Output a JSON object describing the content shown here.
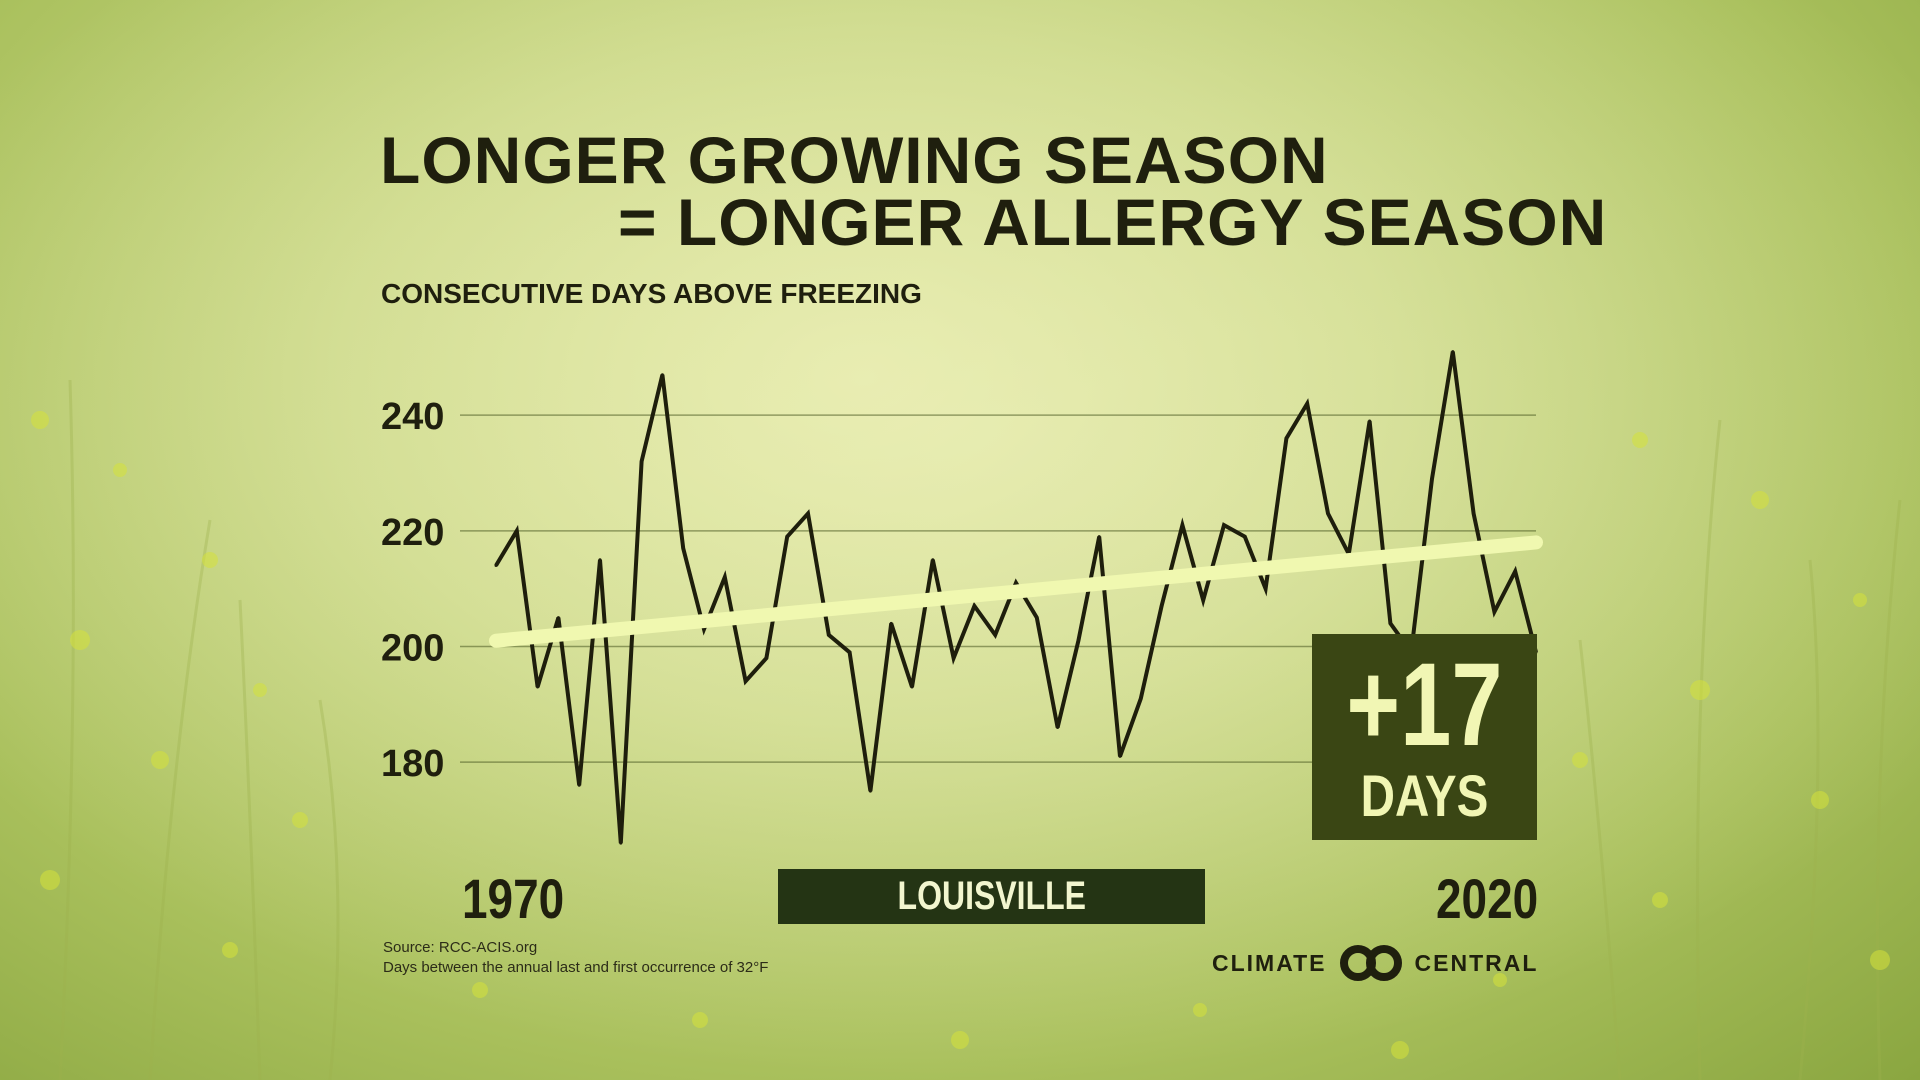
{
  "title_line1": "LONGER GROWING SEASON",
  "title_line2": "= LONGER ALLERGY SEASON",
  "callout": {
    "value": "+17",
    "unit": "DAYS"
  },
  "location": "LOUISVILLE",
  "source": {
    "line1": "Source: RCC-ACIS.org",
    "line2": "Days between the annual last and first occurrence of 32°F"
  },
  "logo": {
    "left_word": "CLIMATE",
    "right_word": "CENTRAL",
    "icon": "climate-central-rings-icon"
  },
  "colors": {
    "series_line": "#1e1e0c",
    "trend_line": "#f0f8b0",
    "callout_bg": "#3a4614",
    "location_bg": "#243414",
    "text": "#1f1f0e"
  },
  "chart_data": {
    "type": "line",
    "title": "CONSECUTIVE DAYS ABOVE FREEZING",
    "xlabel": "",
    "ylabel": "",
    "x_start_label": "1970",
    "x_end_label": "2020",
    "ylim": [
      170,
      253
    ],
    "y_ticks": [
      180,
      200,
      220,
      240
    ],
    "grid": true,
    "series": [
      {
        "name": "Louisville",
        "x": [
          1970,
          1971,
          1972,
          1973,
          1974,
          1975,
          1976,
          1977,
          1978,
          1979,
          1980,
          1981,
          1982,
          1983,
          1984,
          1985,
          1986,
          1987,
          1988,
          1989,
          1990,
          1991,
          1992,
          1993,
          1994,
          1995,
          1996,
          1997,
          1998,
          1999,
          2000,
          2001,
          2002,
          2003,
          2004,
          2005,
          2006,
          2007,
          2008,
          2009,
          2010,
          2011,
          2012,
          2013,
          2014,
          2015,
          2016,
          2017,
          2018,
          2019,
          2020
        ],
        "values": [
          214,
          220,
          193,
          205,
          176,
          215,
          166,
          232,
          247,
          217,
          203,
          212,
          194,
          198,
          219,
          223,
          202,
          199,
          175,
          204,
          193,
          215,
          198,
          207,
          202,
          211,
          205,
          186,
          201,
          219,
          181,
          191,
          207,
          221,
          208,
          221,
          219,
          210,
          236,
          242,
          223,
          216,
          239,
          204,
          199,
          229,
          251,
          223,
          206,
          213,
          199
        ]
      },
      {
        "name": "Trend",
        "x": [
          1970,
          2020
        ],
        "values": [
          201,
          218
        ]
      }
    ],
    "annotation": "+17 DAYS"
  }
}
